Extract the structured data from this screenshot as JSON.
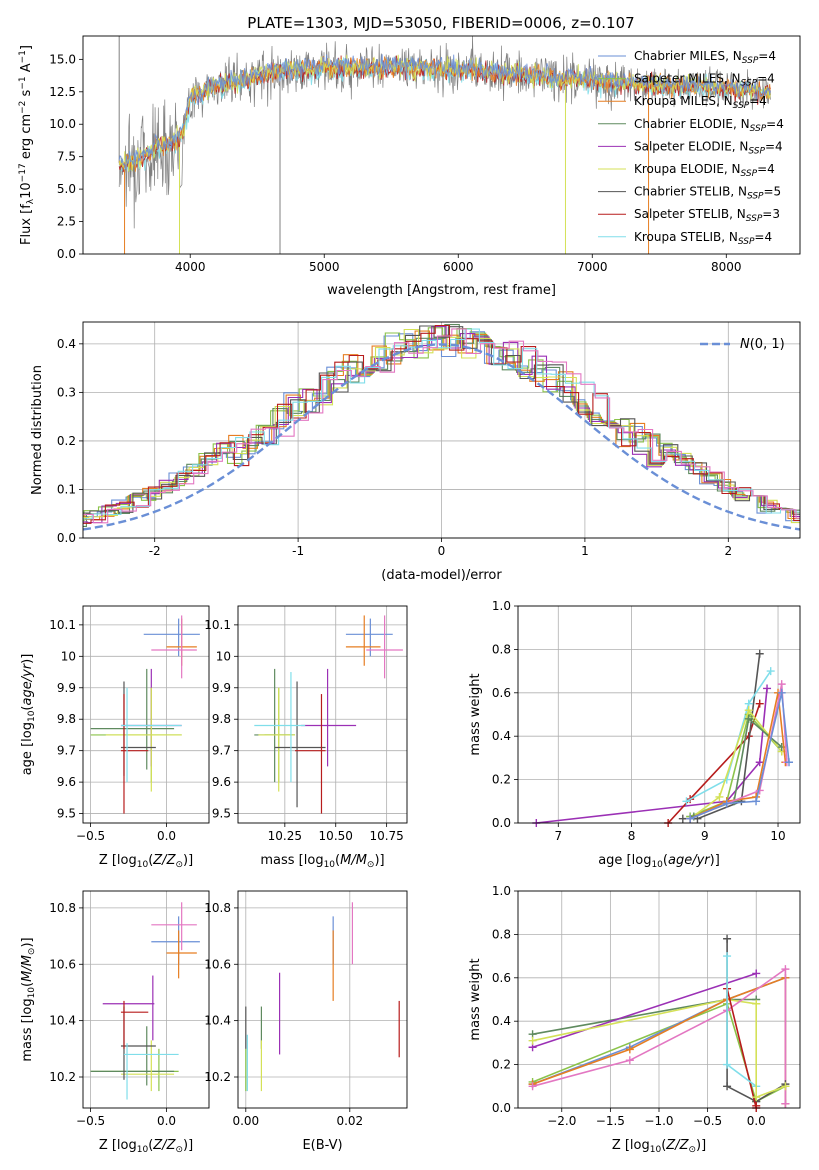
{
  "figure": {
    "title": "PLATE=1303, MJD=53050, FIBERID=0006, z=0.107"
  },
  "colors": {
    "Chabrier MILES": "#6a8fd6",
    "Salpeter MILES": "#8bc34a",
    "Kroupa MILES": "#e67e22",
    "Chabrier ELODIE": "#5f8a5f",
    "Salpeter ELODIE": "#9b30b5",
    "Kroupa ELODIE": "#d4e157",
    "Chabrier STELIB": "#555555",
    "Salpeter STELIB": "#b71c1c",
    "Kroupa STELIB": "#80deea",
    "pink": "#e377c2",
    "data": "#808080",
    "gauss": "#6a8fd6"
  },
  "chart_data": [
    {
      "id": "spectrum",
      "type": "line",
      "title": "PLATE=1303, MJD=53050, FIBERID=0006, z=0.107",
      "xlabel": "wavelength [Angstrom, rest frame]",
      "ylabel": "Flux [f$_\\lambda$10$^{-17}$ erg cm$^{-2}$ s$^{-1}$ A$^{-1}$]",
      "xlim": [
        3200,
        8550
      ],
      "ylim": [
        0,
        16.8
      ],
      "xticks": [
        4000,
        5000,
        6000,
        7000,
        8000
      ],
      "yticks": [
        0.0,
        2.5,
        5.0,
        7.5,
        10.0,
        12.5,
        15.0
      ],
      "ytick_labels": [
        "0.0",
        "2.5",
        "5.0",
        "7.5",
        "10.0",
        "12.5",
        "15.0"
      ],
      "legend_position": "top-right",
      "series": [
        {
          "name": "Chabrier MILES, N$_{SSP}$=4"
        },
        {
          "name": "Salpeter MILES, N$_{SSP}$=4"
        },
        {
          "name": "Kroupa MILES, N$_{SSP}$=4"
        },
        {
          "name": "Chabrier ELODIE, N$_{SSP}$=4"
        },
        {
          "name": "Salpeter ELODIE, N$_{SSP}$=4"
        },
        {
          "name": "Kroupa ELODIE, N$_{SSP}$=4"
        },
        {
          "name": "Chabrier STELIB, N$_{SSP}$=5"
        },
        {
          "name": "Salpeter STELIB, N$_{SSP}$=3"
        },
        {
          "name": "Kroupa STELIB, N$_{SSP}$=4"
        }
      ],
      "continuum": {
        "x": [
          3500,
          3600,
          3700,
          3800,
          3900,
          3950,
          4000,
          4100,
          4200,
          4400,
          4600,
          4800,
          5000,
          5200,
          5500,
          5800,
          6000,
          6200,
          6500,
          6800,
          7000,
          7200,
          7500,
          7800,
          8000,
          8300
        ],
        "y": [
          7.0,
          7.3,
          7.8,
          8.5,
          8.8,
          9.5,
          12.0,
          12.5,
          13.0,
          13.5,
          14.0,
          14.2,
          14.3,
          14.4,
          14.4,
          14.3,
          14.2,
          14.1,
          13.8,
          13.5,
          13.4,
          13.2,
          13.0,
          12.9,
          12.8,
          12.5
        ]
      }
    },
    {
      "id": "residuals",
      "type": "histogram",
      "xlabel": "(data-model)/error",
      "ylabel": "Normed distribution",
      "xlim": [
        -2.5,
        2.5
      ],
      "ylim": [
        0,
        0.445
      ],
      "xticks": [
        -2,
        -1,
        0,
        1,
        2
      ],
      "yticks": [
        0.0,
        0.1,
        0.2,
        0.3,
        0.4
      ],
      "legend": "$\\mathcal{N}(0,1)$",
      "legend_position": "top-right",
      "bin_width": 0.1
    },
    {
      "id": "z-age",
      "type": "errorbar",
      "xlabel": "Z [log$_{10}$(Z/Z$_\\odot$)]",
      "ylabel": "age  [log$_{10}$(age/yr)]",
      "xlim": [
        -0.55,
        0.28
      ],
      "ylim": [
        9.47,
        10.16
      ],
      "xticks": [
        -0.5,
        0.0
      ],
      "xtick_labels": [
        "−0.5",
        "0.0"
      ],
      "yticks": [
        9.5,
        9.6,
        9.7,
        9.8,
        9.9,
        10.0,
        10.1
      ],
      "points": [
        {
          "c": "Chabrier MILES",
          "x": 0.08,
          "y": 10.07,
          "xl": -0.15,
          "xh": 0.22,
          "yl": 10.0,
          "yh": 10.12
        },
        {
          "c": "Salpeter MILES",
          "x": -0.1,
          "y": 9.75,
          "xl": -0.5,
          "xh": 0.1,
          "yl": 9.6,
          "yh": 9.9
        },
        {
          "c": "Kroupa MILES",
          "x": 0.1,
          "y": 10.03,
          "xl": 0.0,
          "xh": 0.2,
          "yl": 9.97,
          "yh": 10.12
        },
        {
          "c": "Chabrier ELODIE",
          "x": -0.13,
          "y": 9.77,
          "xl": -0.5,
          "xh": 0.05,
          "yl": 9.64,
          "yh": 9.96
        },
        {
          "c": "Salpeter ELODIE",
          "x": -0.1,
          "y": 9.78,
          "xl": -0.3,
          "xh": 0.1,
          "yl": 9.65,
          "yh": 9.96
        },
        {
          "c": "Kroupa ELODIE",
          "x": -0.1,
          "y": 9.75,
          "xl": -0.4,
          "xh": 0.1,
          "yl": 9.57,
          "yh": 9.9
        },
        {
          "c": "Chabrier STELIB",
          "x": -0.28,
          "y": 9.71,
          "xl": -0.3,
          "xh": -0.07,
          "yl": 9.62,
          "yh": 9.92
        },
        {
          "c": "Salpeter STELIB",
          "x": -0.28,
          "y": 9.7,
          "xl": -0.3,
          "xh": -0.12,
          "yl": 9.5,
          "yh": 9.88
        },
        {
          "c": "Kroupa STELIB",
          "x": -0.26,
          "y": 9.78,
          "xl": -0.3,
          "xh": 0.1,
          "yl": 9.6,
          "yh": 9.9
        },
        {
          "c": "pink",
          "x": 0.1,
          "y": 10.02,
          "xl": -0.1,
          "xh": 0.2,
          "yl": 9.93,
          "yh": 10.13
        }
      ]
    },
    {
      "id": "mass-age",
      "type": "errorbar",
      "xlabel": "mass [log$_{10}$(M/M$_\\odot$)]",
      "ylabel": "",
      "xlim": [
        10.02,
        10.85
      ],
      "ylim": [
        9.47,
        10.16
      ],
      "xticks": [
        10.25,
        10.5,
        10.75
      ],
      "xtick_labels": [
        "10.25",
        "10.50",
        "10.75"
      ],
      "yticks": [
        9.5,
        9.6,
        9.7,
        9.8,
        9.9,
        10.0,
        10.1
      ],
      "points": [
        {
          "c": "Chabrier MILES",
          "x": 10.67,
          "y": 10.07,
          "xl": 10.55,
          "xh": 10.78,
          "yl": 10.0,
          "yh": 10.12
        },
        {
          "c": "Salpeter MILES",
          "x": 10.22,
          "y": 9.75,
          "xl": 10.15,
          "xh": 10.3,
          "yl": 9.6,
          "yh": 9.9
        },
        {
          "c": "Kroupa MILES",
          "x": 10.64,
          "y": 10.03,
          "xl": 10.55,
          "xh": 10.72,
          "yl": 9.97,
          "yh": 10.13
        },
        {
          "c": "Chabrier ELODIE",
          "x": 10.2,
          "y": 9.75,
          "xl": 10.1,
          "xh": 10.3,
          "yl": 9.6,
          "yh": 9.96
        },
        {
          "c": "Salpeter ELODIE",
          "x": 10.46,
          "y": 9.78,
          "xl": 10.33,
          "xh": 10.6,
          "yl": 9.65,
          "yh": 9.96
        },
        {
          "c": "Kroupa ELODIE",
          "x": 10.22,
          "y": 9.75,
          "xl": 10.12,
          "xh": 10.3,
          "yl": 9.57,
          "yh": 9.9
        },
        {
          "c": "Chabrier STELIB",
          "x": 10.31,
          "y": 9.71,
          "xl": 10.2,
          "xh": 10.45,
          "yl": 9.52,
          "yh": 9.92
        },
        {
          "c": "Salpeter STELIB",
          "x": 10.43,
          "y": 9.7,
          "xl": 10.3,
          "xh": 10.45,
          "yl": 9.5,
          "yh": 9.88
        },
        {
          "c": "Kroupa STELIB",
          "x": 10.28,
          "y": 9.78,
          "xl": 10.1,
          "xh": 10.35,
          "yl": 9.6,
          "yh": 9.95
        },
        {
          "c": "pink",
          "x": 10.74,
          "y": 10.02,
          "xl": 10.65,
          "xh": 10.83,
          "yl": 9.93,
          "yh": 10.13
        }
      ]
    },
    {
      "id": "age-weight",
      "type": "line",
      "xlabel": "age  [log$_{10}$(age/yr)]",
      "ylabel": "mass weight",
      "xlim": [
        6.45,
        10.3
      ],
      "ylim": [
        0,
        1
      ],
      "xticks": [
        7,
        8,
        9,
        10
      ],
      "yticks": [
        0.0,
        0.2,
        0.4,
        0.6,
        0.8,
        1.0
      ],
      "series": [
        {
          "c": "Salpeter ELODIE",
          "x": [
            6.7,
            9.3,
            9.75,
            9.85
          ],
          "y": [
            0.0,
            0.1,
            0.28,
            0.62
          ]
        },
        {
          "c": "Salpeter STELIB",
          "x": [
            8.5,
            8.8,
            9.6,
            9.75
          ],
          "y": [
            0.0,
            0.11,
            0.4,
            0.55
          ]
        },
        {
          "c": "Chabrier STELIB",
          "x": [
            8.7,
            8.9,
            9.5,
            9.75
          ],
          "y": [
            0.02,
            0.02,
            0.1,
            0.78
          ]
        },
        {
          "c": "Kroupa STELIB",
          "x": [
            8.75,
            9.3,
            9.6,
            9.9
          ],
          "y": [
            0.1,
            0.2,
            0.55,
            0.7
          ]
        },
        {
          "c": "Salpeter MILES",
          "x": [
            8.8,
            9.3,
            9.6,
            10.05
          ],
          "y": [
            0.03,
            0.1,
            0.5,
            0.33
          ]
        },
        {
          "c": "Kroupa ELODIE",
          "x": [
            8.8,
            9.2,
            9.6,
            10.05
          ],
          "y": [
            0.02,
            0.12,
            0.52,
            0.33
          ]
        },
        {
          "c": "Chabrier ELODIE",
          "x": [
            8.85,
            9.4,
            9.6,
            10.05
          ],
          "y": [
            0.03,
            0.1,
            0.48,
            0.35
          ]
        },
        {
          "c": "Kroupa MILES",
          "x": [
            8.8,
            9.3,
            9.7,
            10.0,
            10.1
          ],
          "y": [
            0.02,
            0.1,
            0.12,
            0.6,
            0.28
          ]
        },
        {
          "c": "pink",
          "x": [
            8.8,
            9.3,
            9.75,
            10.05,
            10.12
          ],
          "y": [
            0.02,
            0.09,
            0.15,
            0.64,
            0.28
          ]
        },
        {
          "c": "Chabrier MILES",
          "x": [
            8.8,
            9.3,
            9.7,
            10.05,
            10.15
          ],
          "y": [
            0.02,
            0.09,
            0.1,
            0.6,
            0.28
          ]
        }
      ]
    },
    {
      "id": "z-mass",
      "type": "errorbar",
      "xlabel": "Z [log$_{10}$(Z/Z$_\\odot$)]",
      "ylabel": "mass [log$_{10}$(M/M$_\\odot$)]",
      "xlim": [
        -0.55,
        0.28
      ],
      "ylim": [
        10.09,
        10.86
      ],
      "xticks": [
        -0.5,
        0.0
      ],
      "xtick_labels": [
        "−0.5",
        "0.0"
      ],
      "yticks": [
        10.2,
        10.4,
        10.6,
        10.8
      ],
      "points": [
        {
          "c": "Chabrier MILES",
          "x": 0.08,
          "y": 10.68,
          "xl": -0.1,
          "xh": 0.22,
          "yl": 10.6,
          "yh": 10.77
        },
        {
          "c": "Salpeter MILES",
          "x": -0.05,
          "y": 10.22,
          "xl": -0.5,
          "xh": 0.08,
          "yl": 10.15,
          "yh": 10.3
        },
        {
          "c": "Kroupa MILES",
          "x": 0.08,
          "y": 10.64,
          "xl": 0.0,
          "xh": 0.2,
          "yl": 10.55,
          "yh": 10.72
        },
        {
          "c": "Chabrier ELODIE",
          "x": -0.13,
          "y": 10.22,
          "xl": -0.5,
          "xh": 0.05,
          "yl": 10.17,
          "yh": 10.38
        },
        {
          "c": "Salpeter ELODIE",
          "x": -0.09,
          "y": 10.46,
          "xl": -0.42,
          "xh": -0.08,
          "yl": 10.33,
          "yh": 10.56
        },
        {
          "c": "Kroupa ELODIE",
          "x": -0.1,
          "y": 10.21,
          "xl": -0.3,
          "xh": 0.05,
          "yl": 10.15,
          "yh": 10.33
        },
        {
          "c": "Chabrier STELIB",
          "x": -0.28,
          "y": 10.31,
          "xl": -0.3,
          "xh": -0.07,
          "yl": 10.19,
          "yh": 10.45
        },
        {
          "c": "Salpeter STELIB",
          "x": -0.28,
          "y": 10.43,
          "xl": -0.3,
          "xh": -0.12,
          "yl": 10.3,
          "yh": 10.47
        },
        {
          "c": "Kroupa STELIB",
          "x": -0.26,
          "y": 10.28,
          "xl": -0.28,
          "xh": 0.08,
          "yl": 10.12,
          "yh": 10.32
        },
        {
          "c": "pink",
          "x": 0.1,
          "y": 10.74,
          "xl": -0.1,
          "xh": 0.2,
          "yl": 10.65,
          "yh": 10.82
        }
      ]
    },
    {
      "id": "ebv-mass",
      "type": "errorbar",
      "xlabel": "E(B-V)",
      "ylabel": "",
      "xlim": [
        -0.0015,
        0.031
      ],
      "ylim": [
        10.09,
        10.86
      ],
      "xticks": [
        0.0,
        0.02
      ],
      "xtick_labels": [
        "0.00",
        "0.02"
      ],
      "yticks": [
        10.2,
        10.4,
        10.6,
        10.8
      ],
      "points": [
        {
          "c": "Chabrier MILES",
          "x": 0.0168,
          "y": 10.68,
          "yl": 10.6,
          "yh": 10.77
        },
        {
          "c": "Salpeter MILES",
          "x": 0.0,
          "y": 10.22,
          "yl": 10.15,
          "yh": 10.3
        },
        {
          "c": "Kroupa MILES",
          "x": 0.0168,
          "y": 10.55,
          "yl": 10.47,
          "yh": 10.72
        },
        {
          "c": "Chabrier ELODIE",
          "x": 0.003,
          "y": 10.38,
          "yl": 10.3,
          "yh": 10.45
        },
        {
          "c": "Salpeter ELODIE",
          "x": 0.0065,
          "y": 10.42,
          "yl": 10.28,
          "yh": 10.57
        },
        {
          "c": "Kroupa ELODIE",
          "x": 0.003,
          "y": 10.25,
          "yl": 10.15,
          "yh": 10.33
        },
        {
          "c": "Chabrier STELIB",
          "x": 0.0,
          "y": 10.38,
          "yl": 10.3,
          "yh": 10.45
        },
        {
          "c": "Salpeter STELIB",
          "x": 0.0295,
          "y": 10.37,
          "yl": 10.27,
          "yh": 10.47
        },
        {
          "c": "Kroupa STELIB",
          "x": 0.0003,
          "y": 10.28,
          "yl": 10.15,
          "yh": 10.35
        },
        {
          "c": "pink",
          "x": 0.0205,
          "y": 10.7,
          "yl": 10.6,
          "yh": 10.82
        }
      ]
    },
    {
      "id": "z-weight",
      "type": "line",
      "xlabel": "Z [log$_{10}$(Z/Z$_\\odot$)]",
      "ylabel": "mass weight",
      "xlim": [
        -2.45,
        0.45
      ],
      "ylim": [
        0,
        1
      ],
      "xticks": [
        -2.0,
        -1.5,
        -1.0,
        -0.5,
        0.0
      ],
      "xtick_labels": [
        "−2.0",
        "−1.5",
        "−1.0",
        "−0.5",
        "0.0"
      ],
      "yticks": [
        0.0,
        0.2,
        0.4,
        0.6,
        0.8,
        1.0
      ],
      "series": [
        {
          "c": "Chabrier ELODIE",
          "x": [
            -2.3,
            -0.3,
            0.0
          ],
          "y": [
            0.34,
            0.5,
            0.5
          ]
        },
        {
          "c": "Salpeter ELODIE",
          "x": [
            -2.3,
            0.0
          ],
          "y": [
            0.28,
            0.62
          ]
        },
        {
          "c": "Kroupa ELODIE",
          "x": [
            -2.3,
            -0.3,
            0.0
          ],
          "y": [
            0.31,
            0.5,
            0.48
          ]
        },
        {
          "c": "Salpeter MILES",
          "x": [
            -2.3,
            -0.3,
            0.0,
            0.3
          ],
          "y": [
            0.12,
            0.48,
            0.03,
            0.1
          ]
        },
        {
          "c": "Chabrier MILES",
          "x": [
            -2.3,
            -1.3,
            -0.3,
            0.3,
            0.3
          ],
          "y": [
            0.11,
            0.28,
            0.5,
            0.6,
            0.02
          ]
        },
        {
          "c": "Kroupa MILES",
          "x": [
            -2.3,
            -1.3,
            -0.3,
            0.3,
            0.3
          ],
          "y": [
            0.11,
            0.27,
            0.5,
            0.6,
            0.02
          ]
        },
        {
          "c": "pink",
          "x": [
            -2.3,
            -1.3,
            -0.3,
            0.3,
            0.3
          ],
          "y": [
            0.1,
            0.22,
            0.45,
            0.64,
            0.02
          ]
        },
        {
          "c": "Chabrier STELIB",
          "x": [
            -0.3,
            -0.3,
            0.0,
            0.3
          ],
          "y": [
            0.78,
            0.1,
            0.03,
            0.11
          ]
        },
        {
          "c": "Salpeter STELIB",
          "x": [
            -0.3,
            0.0,
            0.0
          ],
          "y": [
            0.55,
            0.0,
            0.01
          ]
        },
        {
          "c": "Kroupa STELIB",
          "x": [
            -0.3,
            -0.3,
            0.0
          ],
          "y": [
            0.7,
            0.2,
            0.1
          ]
        },
        {
          "c": "Kroupa ELODIE",
          "x": [
            0.0,
            0.0,
            0.3
          ],
          "y": [
            0.48,
            0.05,
            0.1
          ]
        }
      ]
    }
  ]
}
